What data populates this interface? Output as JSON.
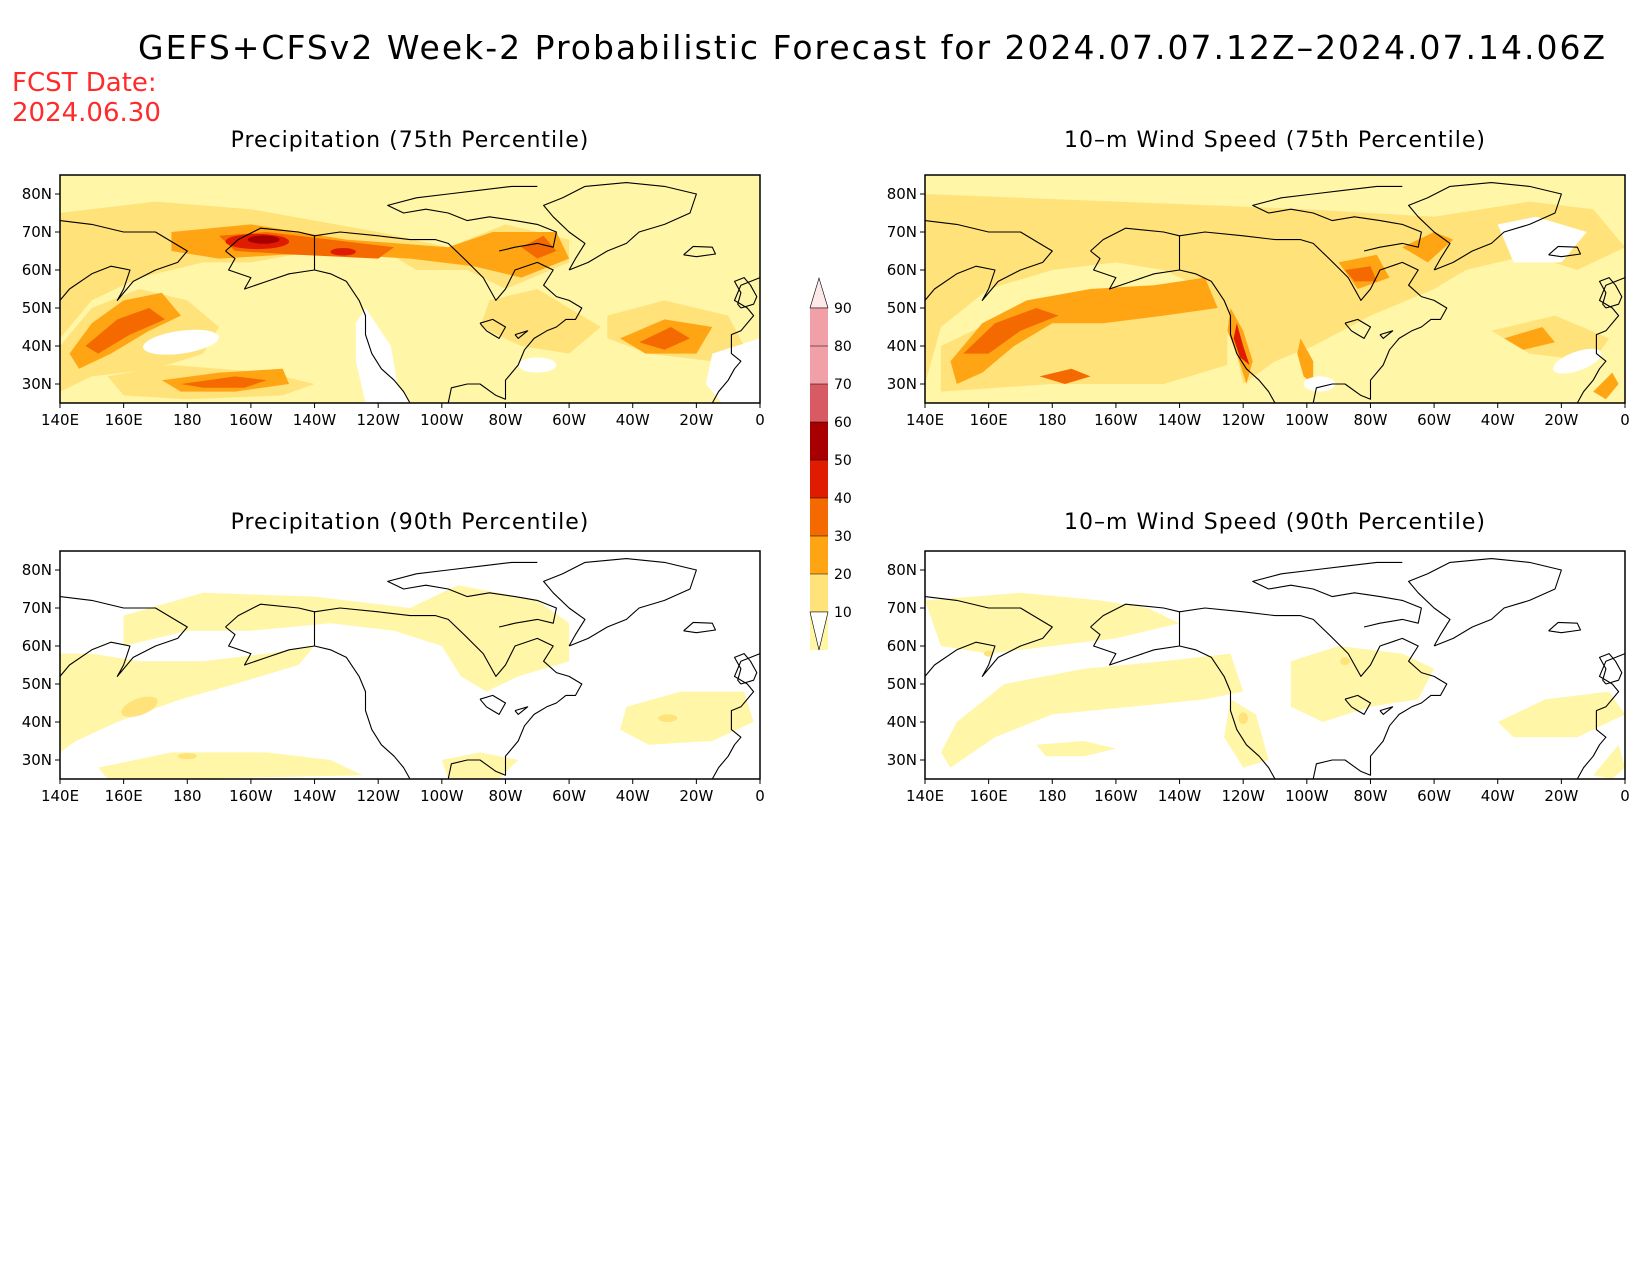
{
  "title": "GEFS+CFSv2 Week-2 Probabilistic Forecast for 2024.07.07.12Z–2024.07.14.06Z",
  "fcst_date_label": "FCST Date:",
  "fcst_date_value": "2024.06.30",
  "colors": {
    "c10": "#fff6a8",
    "c20": "#ffe27a",
    "c30": "#ffa514",
    "c40": "#f56a00",
    "c50": "#e01c00",
    "c60": "#a80000",
    "c70": "#d85a62",
    "c80": "#f0a0a6",
    "c90": "#ffe8e8",
    "coast": "#000000"
  },
  "colorbar": {
    "levels": [
      "90",
      "80",
      "70",
      "60",
      "50",
      "40",
      "30",
      "20",
      "10"
    ]
  },
  "axes": {
    "lon_labels": [
      "140E",
      "160E",
      "180",
      "160W",
      "140W",
      "120W",
      "100W",
      "80W",
      "60W",
      "40W",
      "20W",
      "0"
    ],
    "lat_labels": [
      "80N",
      "70N",
      "60N",
      "50N",
      "40N",
      "30N"
    ]
  },
  "panels": [
    {
      "id": "precip75",
      "title": "Precipitation (75th Percentile)"
    },
    {
      "id": "wind75",
      "title": "10–m Wind Speed (75th Percentile)"
    },
    {
      "id": "precip90",
      "title": "Precipitation (90th Percentile)"
    },
    {
      "id": "wind90",
      "title": "10–m Wind Speed (90th Percentile)"
    }
  ]
}
